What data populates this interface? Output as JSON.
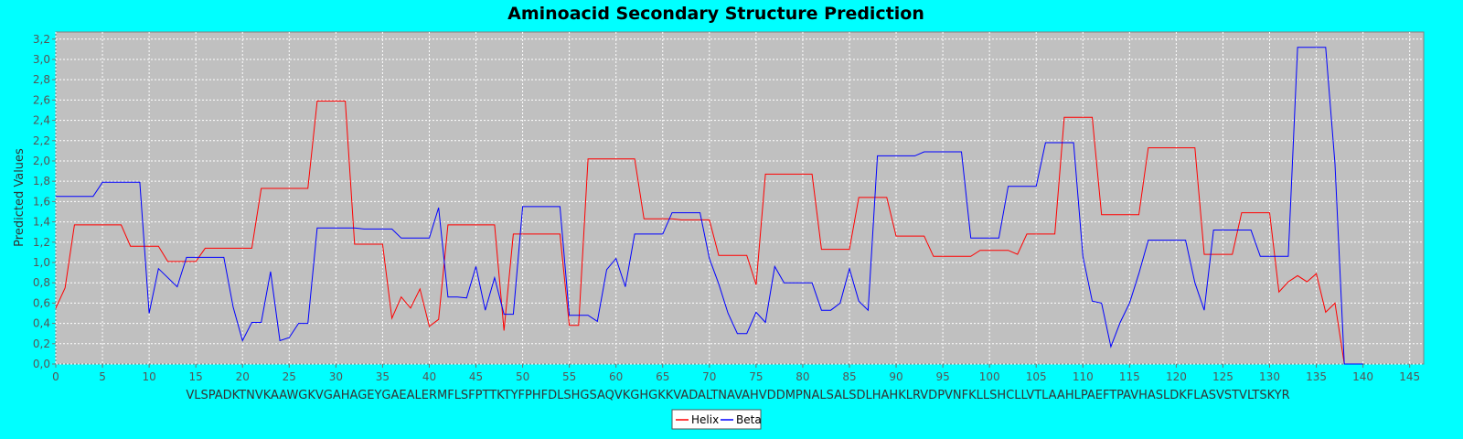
{
  "colors": {
    "background": "#00FFFF",
    "plot_background": "#C0C0C0",
    "grid": "#FFFFFF",
    "helix": "#FF0000",
    "beta": "#0000FF"
  },
  "chart_data": {
    "type": "line",
    "title": "Aminoacid Secondary Structure Prediction",
    "xlabel": "VLSPADKTNVKAAWGKVGAHAGEYGAEALERMFLSFPTTKTYFPHFDLSHGSAQVKGHGKKVADALTNAVAHVDDMPNALSALSDLHAHKLRVDPVNFKLLSHCLLVTLAAHLPAEFTPAVHASLDKFLASVSTVLTSKYR",
    "ylabel": "Predicted Values",
    "xlim": [
      0,
      146.5
    ],
    "ylim": [
      0,
      3.27
    ],
    "x_ticks": [
      0,
      5,
      10,
      15,
      20,
      25,
      30,
      35,
      40,
      45,
      50,
      55,
      60,
      65,
      70,
      75,
      80,
      85,
      90,
      95,
      100,
      105,
      110,
      115,
      120,
      125,
      130,
      135,
      140,
      145
    ],
    "x_tick_labels": [
      "0",
      "5",
      "10",
      "15",
      "20",
      "25",
      "30",
      "35",
      "40",
      "45",
      "50",
      "55",
      "60",
      "65",
      "70",
      "75",
      "80",
      "85",
      "90",
      "95",
      "100",
      "105",
      "110",
      "115",
      "120",
      "125",
      "130",
      "135",
      "140",
      "145"
    ],
    "y_ticks": [
      0,
      0.2,
      0.4,
      0.6,
      0.8,
      1.0,
      1.2,
      1.4,
      1.6,
      1.8,
      2.0,
      2.2,
      2.4,
      2.6,
      2.8,
      3.0,
      3.2
    ],
    "y_tick_labels": [
      "0,0",
      "0,2",
      "0,4",
      "0,6",
      "0,8",
      "1,0",
      "1,2",
      "1,4",
      "1,6",
      "1,8",
      "2,0",
      "2,2",
      "2,4",
      "2,6",
      "2,8",
      "3,0",
      "3,2"
    ],
    "grid": true,
    "legend_position": "bottom-center",
    "series": [
      {
        "name": "Helix",
        "color": "#FF0000",
        "points": [
          [
            0,
            0.55
          ],
          [
            1,
            0.75
          ],
          [
            2,
            1.37
          ],
          [
            7,
            1.37
          ],
          [
            8,
            1.16
          ],
          [
            11,
            1.16
          ],
          [
            12,
            1.01
          ],
          [
            15,
            1.01
          ],
          [
            16,
            1.14
          ],
          [
            21,
            1.14
          ],
          [
            22,
            1.73
          ],
          [
            27,
            1.73
          ],
          [
            28,
            2.59
          ],
          [
            31,
            2.59
          ],
          [
            32,
            1.18
          ],
          [
            35,
            1.18
          ],
          [
            36,
            0.45
          ],
          [
            37,
            0.66
          ],
          [
            38,
            0.55
          ],
          [
            39,
            0.74
          ],
          [
            40,
            0.37
          ],
          [
            41,
            0.44
          ],
          [
            42,
            1.37
          ],
          [
            47,
            1.37
          ],
          [
            48,
            0.33
          ],
          [
            49,
            1.28
          ],
          [
            54,
            1.28
          ],
          [
            55,
            0.38
          ],
          [
            56,
            0.38
          ],
          [
            57,
            2.02
          ],
          [
            62,
            2.02
          ],
          [
            63,
            1.43
          ],
          [
            66,
            1.43
          ],
          [
            67,
            1.42
          ],
          [
            70,
            1.42
          ],
          [
            71,
            1.07
          ],
          [
            74,
            1.07
          ],
          [
            75,
            0.78
          ],
          [
            76,
            1.87
          ],
          [
            81,
            1.87
          ],
          [
            82,
            1.13
          ],
          [
            85,
            1.13
          ],
          [
            86,
            1.64
          ],
          [
            89,
            1.64
          ],
          [
            90,
            1.26
          ],
          [
            93,
            1.26
          ],
          [
            94,
            1.06
          ],
          [
            98,
            1.06
          ],
          [
            99,
            1.12
          ],
          [
            102,
            1.12
          ],
          [
            103,
            1.08
          ],
          [
            104,
            1.28
          ],
          [
            107,
            1.28
          ],
          [
            108,
            2.43
          ],
          [
            111,
            2.43
          ],
          [
            112,
            1.47
          ],
          [
            116,
            1.47
          ],
          [
            117,
            2.13
          ],
          [
            122,
            2.13
          ],
          [
            123,
            1.08
          ],
          [
            126,
            1.08
          ],
          [
            127,
            1.49
          ],
          [
            130,
            1.49
          ],
          [
            131,
            0.71
          ],
          [
            132,
            0.81
          ],
          [
            133,
            0.87
          ],
          [
            134,
            0.81
          ],
          [
            135,
            0.89
          ],
          [
            136,
            0.51
          ],
          [
            137,
            0.6
          ],
          [
            138,
            0
          ],
          [
            140,
            0
          ]
        ]
      },
      {
        "name": "Beta",
        "color": "#0000FF",
        "points": [
          [
            0,
            1.65
          ],
          [
            4,
            1.65
          ],
          [
            5,
            1.79
          ],
          [
            9,
            1.79
          ],
          [
            10,
            0.5
          ],
          [
            11,
            0.94
          ],
          [
            13,
            0.76
          ],
          [
            14,
            1.05
          ],
          [
            18,
            1.05
          ],
          [
            19,
            0.56
          ],
          [
            20,
            0.23
          ],
          [
            21,
            0.41
          ],
          [
            22,
            0.41
          ],
          [
            23,
            0.91
          ],
          [
            24,
            0.23
          ],
          [
            25,
            0.26
          ],
          [
            26,
            0.4
          ],
          [
            27,
            0.4
          ],
          [
            28,
            1.34
          ],
          [
            32,
            1.34
          ],
          [
            33,
            1.33
          ],
          [
            36,
            1.33
          ],
          [
            37,
            1.24
          ],
          [
            40,
            1.24
          ],
          [
            41,
            1.54
          ],
          [
            42,
            0.66
          ],
          [
            43,
            0.66
          ],
          [
            44,
            0.65
          ],
          [
            45,
            0.96
          ],
          [
            46,
            0.53
          ],
          [
            47,
            0.85
          ],
          [
            48,
            0.49
          ],
          [
            49,
            0.49
          ],
          [
            50,
            1.55
          ],
          [
            54,
            1.55
          ],
          [
            55,
            0.48
          ],
          [
            57,
            0.48
          ],
          [
            58,
            0.42
          ],
          [
            59,
            0.93
          ],
          [
            60,
            1.04
          ],
          [
            61,
            0.76
          ],
          [
            62,
            1.28
          ],
          [
            65,
            1.28
          ],
          [
            66,
            1.49
          ],
          [
            69,
            1.49
          ],
          [
            70,
            1.04
          ],
          [
            71,
            0.79
          ],
          [
            72,
            0.5
          ],
          [
            73,
            0.3
          ],
          [
            74,
            0.3
          ],
          [
            75,
            0.51
          ],
          [
            76,
            0.41
          ],
          [
            77,
            0.96
          ],
          [
            78,
            0.8
          ],
          [
            81,
            0.8
          ],
          [
            82,
            0.53
          ],
          [
            83,
            0.53
          ],
          [
            84,
            0.6
          ],
          [
            85,
            0.94
          ],
          [
            86,
            0.62
          ],
          [
            87,
            0.53
          ],
          [
            88,
            2.05
          ],
          [
            92,
            2.05
          ],
          [
            93,
            2.09
          ],
          [
            97,
            2.09
          ],
          [
            98,
            1.24
          ],
          [
            101,
            1.24
          ],
          [
            102,
            1.75
          ],
          [
            105,
            1.75
          ],
          [
            106,
            2.18
          ],
          [
            109,
            2.18
          ],
          [
            110,
            1.06
          ],
          [
            111,
            0.62
          ],
          [
            112,
            0.6
          ],
          [
            113,
            0.17
          ],
          [
            114,
            0.41
          ],
          [
            115,
            0.6
          ],
          [
            116,
            0.89
          ],
          [
            117,
            1.22
          ],
          [
            121,
            1.22
          ],
          [
            122,
            0.8
          ],
          [
            123,
            0.53
          ],
          [
            124,
            1.32
          ],
          [
            128,
            1.32
          ],
          [
            129,
            1.06
          ],
          [
            132,
            1.06
          ],
          [
            133,
            3.12
          ],
          [
            136,
            3.12
          ],
          [
            137,
            1.97
          ],
          [
            138,
            0
          ],
          [
            140,
            0
          ]
        ]
      }
    ]
  }
}
